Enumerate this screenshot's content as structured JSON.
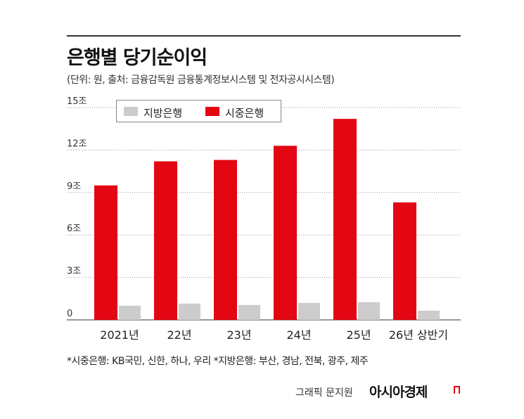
{
  "header": {
    "title": "은행별 당기순이익",
    "subtitle": "(단위: 원, 출처: 금융감독원 금융통계정보시스템 및 전자공시시스템)"
  },
  "footer": {
    "footnote": "*시중은행: KB국민, 신한, 하나, 우리  *지방은행: 부산, 경남, 전북, 광주, 제주",
    "credit": "그래픽 문지원",
    "brand": "아시아경제"
  },
  "colors": {
    "local": "#cccccc",
    "commercial": "#e30613"
  },
  "chart_data": {
    "type": "bar",
    "categories": [
      "2021년",
      "22년",
      "23년",
      "24년",
      "25년",
      "26년 상반기"
    ],
    "y_ticks": [
      "0",
      "3조",
      "6조",
      "9조",
      "12조",
      "15조"
    ],
    "ylim": [
      0,
      15
    ],
    "grid": true,
    "legend_position": "top-left",
    "series": [
      {
        "name": "지방은행",
        "values": [
          1.0,
          1.15,
          1.05,
          1.2,
          1.25,
          0.65
        ]
      },
      {
        "name": "시중은행",
        "values": [
          9.5,
          11.2,
          11.3,
          12.3,
          14.2,
          8.3
        ]
      }
    ]
  }
}
